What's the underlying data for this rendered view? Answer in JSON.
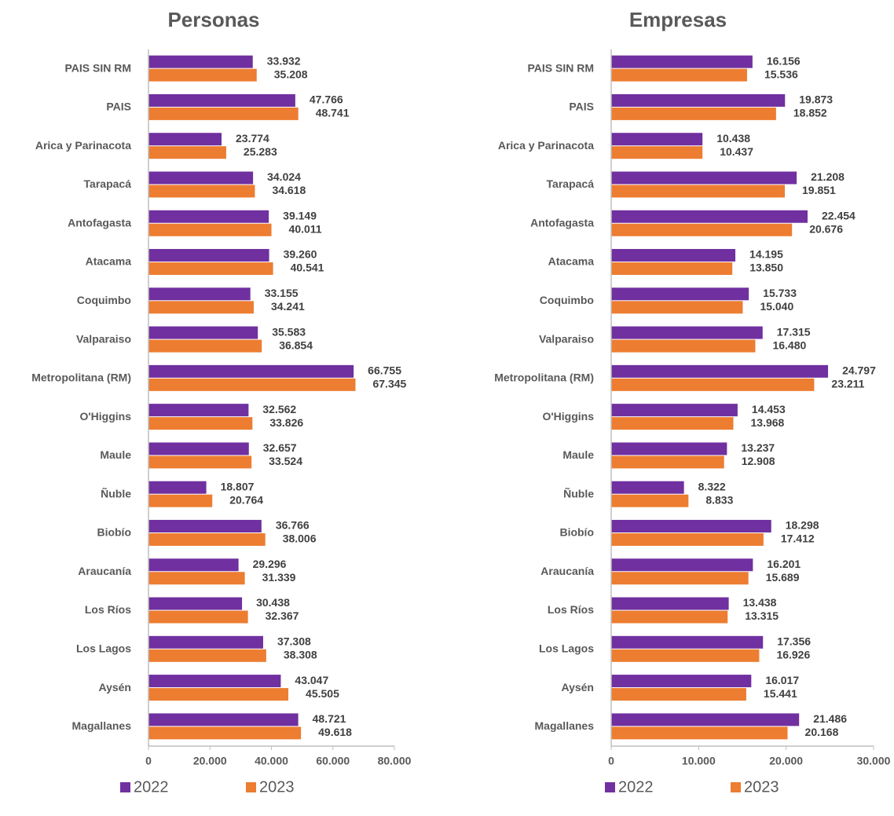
{
  "charts": [
    {
      "type": "bar",
      "title": "Personas",
      "categories": [
        "PAIS SIN RM",
        "PAIS",
        "Arica y Parinacota",
        "Tarapacá",
        "Antofagasta",
        "Atacama",
        "Coquimbo",
        "Valparaiso",
        "Metropolitana (RM)",
        "O'Higgins",
        "Maule",
        "Ñuble",
        "Biobío",
        "Araucanía",
        "Los Ríos",
        "Los Lagos",
        "Aysén",
        "Magallanes"
      ],
      "series": [
        {
          "name": "2022",
          "color": "#7030a0",
          "values": [
            33932,
            47766,
            23774,
            34024,
            39149,
            39260,
            33155,
            35583,
            66755,
            32562,
            32657,
            18807,
            36766,
            29296,
            30438,
            37308,
            43047,
            48721
          ],
          "value_labels": [
            "33.932",
            "47.766",
            "23.774",
            "34.024",
            "39.149",
            "39.260",
            "33.155",
            "35.583",
            "66.755",
            "32.562",
            "32.657",
            "18.807",
            "36.766",
            "29.296",
            "30.438",
            "37.308",
            "43.047",
            "48.721"
          ]
        },
        {
          "name": "2023",
          "color": "#ed7d31",
          "values": [
            35208,
            48741,
            25283,
            34618,
            40011,
            40541,
            34241,
            36854,
            67345,
            33826,
            33524,
            20764,
            38006,
            31339,
            32367,
            38308,
            45505,
            49618
          ],
          "value_labels": [
            "35.208",
            "48.741",
            "25.283",
            "34.618",
            "40.011",
            "40.541",
            "34.241",
            "36.854",
            "67.345",
            "33.826",
            "33.524",
            "20.764",
            "38.006",
            "31.339",
            "32.367",
            "38.308",
            "45.505",
            "49.618"
          ]
        }
      ],
      "xlim": [
        0,
        80000
      ],
      "xticks": [
        0,
        {
          "value": 20000,
          "label": "20.000"
        },
        {
          "value": 40000,
          "label": "40.000"
        },
        {
          "value": 60000,
          "label": "60.000"
        },
        {
          "value": 80000,
          "label": "80.000"
        }
      ],
      "legend": "bottom"
    },
    {
      "type": "bar",
      "title": "Empresas",
      "categories": [
        "PAIS SIN RM",
        "PAIS",
        "Arica y Parinacota",
        "Tarapacá",
        "Antofagasta",
        "Atacama",
        "Coquimbo",
        "Valparaiso",
        "Metropolitana (RM)",
        "O'Higgins",
        "Maule",
        "Ñuble",
        "Biobío",
        "Araucanía",
        "Los Ríos",
        "Los Lagos",
        "Aysén",
        "Magallanes"
      ],
      "series": [
        {
          "name": "2022",
          "color": "#7030a0",
          "values": [
            16156,
            19873,
            10438,
            21208,
            22454,
            14195,
            15733,
            17315,
            24797,
            14453,
            13237,
            8322,
            18298,
            16201,
            13438,
            17356,
            16017,
            21486
          ],
          "value_labels": [
            "16.156",
            "19.873",
            "10.438",
            "21.208",
            "22.454",
            "14.195",
            "15.733",
            "17.315",
            "24.797",
            "14.453",
            "13.237",
            "8.322",
            "18.298",
            "16.201",
            "13.438",
            "17.356",
            "16.017",
            "21.486"
          ]
        },
        {
          "name": "2023",
          "color": "#ed7d31",
          "values": [
            15536,
            18852,
            10437,
            19851,
            20676,
            13850,
            15040,
            16480,
            23211,
            13968,
            12908,
            8833,
            17412,
            15689,
            13315,
            16926,
            15441,
            20168
          ],
          "value_labels": [
            "15.536",
            "18.852",
            "10.437",
            "19.851",
            "20.676",
            "13.850",
            "15.040",
            "16.480",
            "23.211",
            "13.968",
            "12.908",
            "8.833",
            "17.412",
            "15.689",
            "13.315",
            "16.926",
            "15.441",
            "20.168"
          ]
        }
      ],
      "xlim": [
        0,
        30000
      ],
      "xticks": [
        0,
        {
          "value": 10000,
          "label": "10.000"
        },
        {
          "value": 20000,
          "label": "20.000"
        },
        {
          "value": 30000,
          "label": "30.000"
        }
      ],
      "legend": "bottom"
    }
  ]
}
